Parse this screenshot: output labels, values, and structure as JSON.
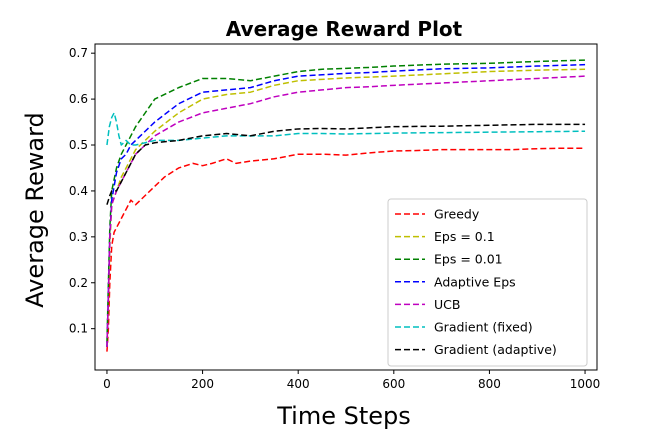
{
  "chart_data": {
    "type": "line",
    "title": "Average Reward Plot",
    "xlabel": "Time Steps",
    "ylabel": "Average Reward",
    "xlim": [
      -25,
      1025
    ],
    "ylim": [
      0.01,
      0.72
    ],
    "xticks": [
      0,
      200,
      400,
      600,
      800,
      1000
    ],
    "yticks": [
      0.1,
      0.2,
      0.3,
      0.4,
      0.5,
      0.6,
      0.7
    ],
    "grid": false,
    "legend_position": "lower-right",
    "line_style": "dashed",
    "series": [
      {
        "name": "Greedy",
        "color": "#ff0000",
        "points": [
          [
            0,
            0.05
          ],
          [
            3,
            0.1
          ],
          [
            6,
            0.2
          ],
          [
            10,
            0.28
          ],
          [
            15,
            0.31
          ],
          [
            20,
            0.32
          ],
          [
            30,
            0.34
          ],
          [
            40,
            0.36
          ],
          [
            50,
            0.38
          ],
          [
            60,
            0.37
          ],
          [
            70,
            0.38
          ],
          [
            80,
            0.39
          ],
          [
            100,
            0.41
          ],
          [
            120,
            0.43
          ],
          [
            150,
            0.45
          ],
          [
            180,
            0.46
          ],
          [
            200,
            0.455
          ],
          [
            220,
            0.46
          ],
          [
            250,
            0.47
          ],
          [
            270,
            0.46
          ],
          [
            300,
            0.465
          ],
          [
            350,
            0.47
          ],
          [
            400,
            0.48
          ],
          [
            450,
            0.48
          ],
          [
            500,
            0.478
          ],
          [
            550,
            0.483
          ],
          [
            600,
            0.487
          ],
          [
            650,
            0.488
          ],
          [
            700,
            0.49
          ],
          [
            750,
            0.49
          ],
          [
            800,
            0.49
          ],
          [
            850,
            0.49
          ],
          [
            900,
            0.492
          ],
          [
            950,
            0.493
          ],
          [
            1000,
            0.493
          ]
        ]
      },
      {
        "name": "Eps = 0.1",
        "color": "#bfbf00",
        "points": [
          [
            0,
            0.06
          ],
          [
            3,
            0.15
          ],
          [
            6,
            0.28
          ],
          [
            10,
            0.37
          ],
          [
            20,
            0.4
          ],
          [
            30,
            0.43
          ],
          [
            40,
            0.45
          ],
          [
            50,
            0.47
          ],
          [
            60,
            0.49
          ],
          [
            80,
            0.51
          ],
          [
            100,
            0.53
          ],
          [
            150,
            0.57
          ],
          [
            200,
            0.6
          ],
          [
            250,
            0.61
          ],
          [
            300,
            0.615
          ],
          [
            350,
            0.63
          ],
          [
            400,
            0.64
          ],
          [
            450,
            0.643
          ],
          [
            500,
            0.646
          ],
          [
            550,
            0.648
          ],
          [
            600,
            0.65
          ],
          [
            700,
            0.655
          ],
          [
            800,
            0.66
          ],
          [
            900,
            0.663
          ],
          [
            1000,
            0.665
          ]
        ]
      },
      {
        "name": "Eps = 0.01",
        "color": "#008000",
        "points": [
          [
            0,
            0.07
          ],
          [
            3,
            0.2
          ],
          [
            6,
            0.32
          ],
          [
            10,
            0.4
          ],
          [
            20,
            0.45
          ],
          [
            30,
            0.48
          ],
          [
            40,
            0.5
          ],
          [
            50,
            0.52
          ],
          [
            60,
            0.54
          ],
          [
            80,
            0.57
          ],
          [
            100,
            0.6
          ],
          [
            150,
            0.625
          ],
          [
            200,
            0.645
          ],
          [
            250,
            0.645
          ],
          [
            300,
            0.64
          ],
          [
            350,
            0.65
          ],
          [
            400,
            0.66
          ],
          [
            450,
            0.665
          ],
          [
            500,
            0.667
          ],
          [
            550,
            0.669
          ],
          [
            600,
            0.672
          ],
          [
            700,
            0.676
          ],
          [
            800,
            0.678
          ],
          [
            900,
            0.682
          ],
          [
            1000,
            0.685
          ]
        ]
      },
      {
        "name": "Adaptive Eps",
        "color": "#0000ff",
        "points": [
          [
            0,
            0.06
          ],
          [
            3,
            0.18
          ],
          [
            6,
            0.3
          ],
          [
            10,
            0.38
          ],
          [
            20,
            0.44
          ],
          [
            30,
            0.47
          ],
          [
            40,
            0.48
          ],
          [
            50,
            0.5
          ],
          [
            60,
            0.51
          ],
          [
            80,
            0.53
          ],
          [
            100,
            0.55
          ],
          [
            150,
            0.59
          ],
          [
            200,
            0.615
          ],
          [
            250,
            0.62
          ],
          [
            300,
            0.625
          ],
          [
            350,
            0.64
          ],
          [
            400,
            0.65
          ],
          [
            450,
            0.653
          ],
          [
            500,
            0.656
          ],
          [
            550,
            0.658
          ],
          [
            600,
            0.661
          ],
          [
            700,
            0.666
          ],
          [
            800,
            0.668
          ],
          [
            900,
            0.672
          ],
          [
            1000,
            0.675
          ]
        ]
      },
      {
        "name": "UCB",
        "color": "#bf00bf",
        "points": [
          [
            0,
            0.06
          ],
          [
            3,
            0.17
          ],
          [
            6,
            0.3
          ],
          [
            10,
            0.37
          ],
          [
            20,
            0.4
          ],
          [
            30,
            0.42
          ],
          [
            40,
            0.44
          ],
          [
            50,
            0.46
          ],
          [
            60,
            0.48
          ],
          [
            80,
            0.5
          ],
          [
            100,
            0.52
          ],
          [
            150,
            0.55
          ],
          [
            200,
            0.57
          ],
          [
            250,
            0.58
          ],
          [
            300,
            0.59
          ],
          [
            350,
            0.605
          ],
          [
            400,
            0.615
          ],
          [
            450,
            0.62
          ],
          [
            500,
            0.625
          ],
          [
            550,
            0.627
          ],
          [
            600,
            0.63
          ],
          [
            700,
            0.635
          ],
          [
            800,
            0.64
          ],
          [
            900,
            0.645
          ],
          [
            1000,
            0.65
          ]
        ]
      },
      {
        "name": "Gradient (fixed)",
        "color": "#00bfbf",
        "points": [
          [
            0,
            0.5
          ],
          [
            5,
            0.54
          ],
          [
            10,
            0.56
          ],
          [
            15,
            0.57
          ],
          [
            20,
            0.55
          ],
          [
            25,
            0.52
          ],
          [
            30,
            0.5
          ],
          [
            40,
            0.51
          ],
          [
            50,
            0.5
          ],
          [
            60,
            0.5
          ],
          [
            80,
            0.505
          ],
          [
            100,
            0.51
          ],
          [
            150,
            0.51
          ],
          [
            200,
            0.515
          ],
          [
            250,
            0.52
          ],
          [
            300,
            0.52
          ],
          [
            350,
            0.52
          ],
          [
            400,
            0.525
          ],
          [
            450,
            0.525
          ],
          [
            500,
            0.524
          ],
          [
            600,
            0.526
          ],
          [
            700,
            0.527
          ],
          [
            800,
            0.528
          ],
          [
            900,
            0.529
          ],
          [
            1000,
            0.53
          ]
        ]
      },
      {
        "name": "Gradient (adaptive)",
        "color": "#000000",
        "points": [
          [
            0,
            0.37
          ],
          [
            3,
            0.38
          ],
          [
            6,
            0.39
          ],
          [
            10,
            0.4
          ],
          [
            20,
            0.4
          ],
          [
            30,
            0.42
          ],
          [
            40,
            0.44
          ],
          [
            50,
            0.46
          ],
          [
            60,
            0.48
          ],
          [
            80,
            0.5
          ],
          [
            100,
            0.505
          ],
          [
            150,
            0.51
          ],
          [
            200,
            0.52
          ],
          [
            250,
            0.525
          ],
          [
            300,
            0.52
          ],
          [
            350,
            0.53
          ],
          [
            400,
            0.535
          ],
          [
            450,
            0.536
          ],
          [
            500,
            0.535
          ],
          [
            600,
            0.54
          ],
          [
            700,
            0.541
          ],
          [
            800,
            0.543
          ],
          [
            900,
            0.545
          ],
          [
            1000,
            0.545
          ]
        ]
      }
    ]
  }
}
